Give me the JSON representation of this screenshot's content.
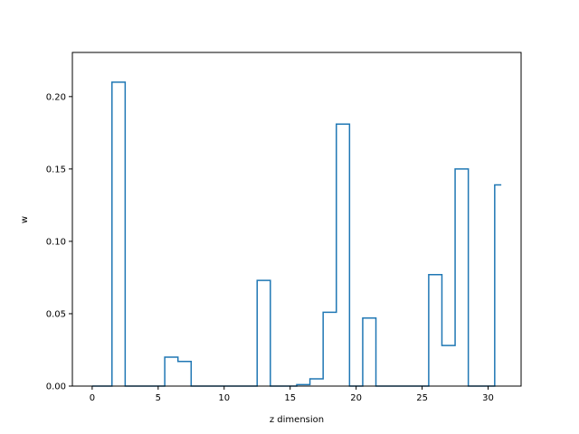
{
  "chart_data": {
    "type": "line",
    "drawstyle": "steps-mid",
    "title": "",
    "xlabel": "z dimension",
    "ylabel": "w",
    "xlim": [
      -1.5,
      32.5
    ],
    "ylim": [
      0.0,
      0.2305
    ],
    "xticks": [
      0,
      5,
      10,
      15,
      20,
      25,
      30
    ],
    "xtick_labels": [
      "0",
      "5",
      "10",
      "15",
      "20",
      "25",
      "30"
    ],
    "yticks": [
      0.0,
      0.05,
      0.1,
      0.15,
      0.2
    ],
    "ytick_labels": [
      "0.00",
      "0.05",
      "0.10",
      "0.15",
      "0.20"
    ],
    "grid": false,
    "legend": "none",
    "series": [
      {
        "color": "#1f77b4",
        "x": [
          0,
          1,
          2,
          3,
          4,
          5,
          6,
          7,
          8,
          9,
          10,
          11,
          12,
          13,
          14,
          15,
          16,
          17,
          18,
          19,
          20,
          21,
          22,
          23,
          24,
          25,
          26,
          27,
          28,
          29,
          30,
          31
        ],
        "values": [
          0.0,
          0.0,
          0.21,
          0.0,
          0.0,
          0.0,
          0.02,
          0.017,
          0.0,
          0.0,
          0.0,
          0.0,
          0.0,
          0.073,
          0.0,
          0.0,
          0.001,
          0.005,
          0.051,
          0.181,
          0.0,
          0.047,
          0.0,
          0.0,
          0.0,
          0.0,
          0.077,
          0.028,
          0.15,
          0.0,
          0.0,
          0.139
        ]
      }
    ]
  }
}
